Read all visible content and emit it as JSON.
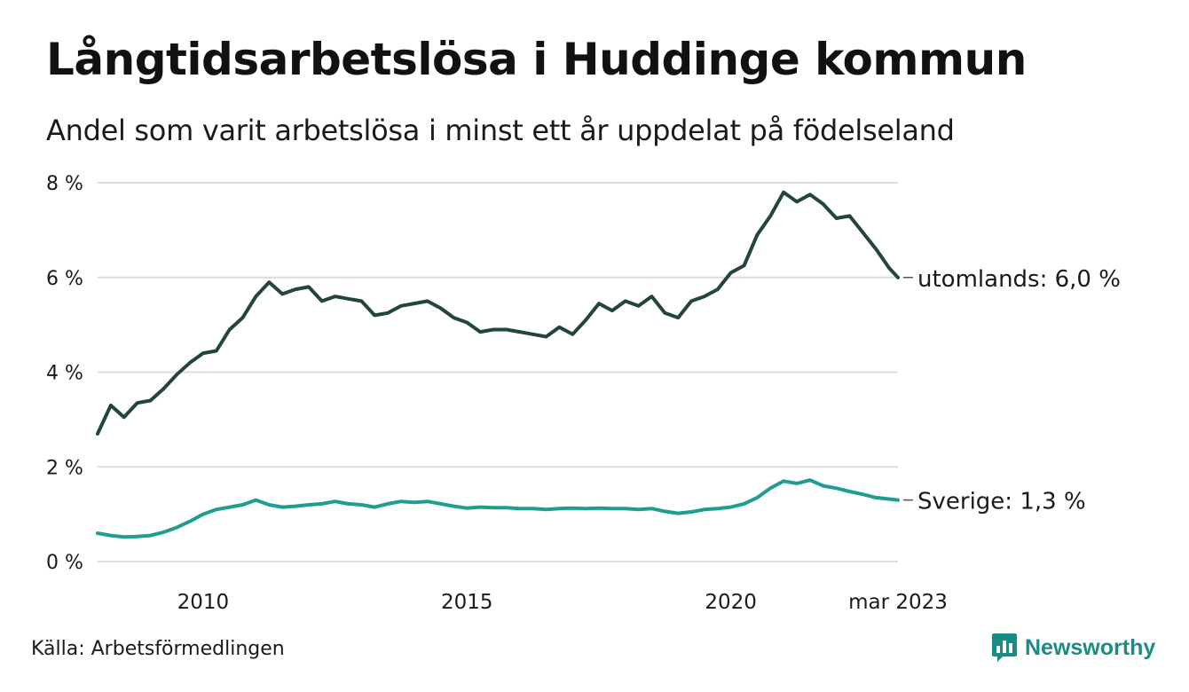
{
  "title": "Långtidsarbetslösa i Huddinge kommun",
  "subtitle": "Andel som varit arbetslösa i minst ett år uppdelat på födelseland",
  "source": "Källa: Arbetsförmedlingen",
  "brand": {
    "name": "Newsworthy",
    "color": "#1b8c84",
    "icon": "bar-chart-speech-bubble-icon"
  },
  "chart_data": {
    "type": "line",
    "x_range": [
      "2008-01",
      "2023-03"
    ],
    "ylim": [
      0,
      8
    ],
    "y_ticks": [
      {
        "value": 0,
        "label": "0 %"
      },
      {
        "value": 2,
        "label": "2 %"
      },
      {
        "value": 4,
        "label": "4 %"
      },
      {
        "value": 6,
        "label": "6 %"
      },
      {
        "value": 8,
        "label": "8 %"
      }
    ],
    "x_ticks": [
      {
        "date": "2010-01",
        "label": "2010"
      },
      {
        "date": "2015-01",
        "label": "2015"
      },
      {
        "date": "2020-01",
        "label": "2020"
      },
      {
        "date": "2023-03",
        "label": "mar 2023"
      }
    ],
    "grid": "horizontal",
    "legend": "direct labels at line ends",
    "series": [
      {
        "name": "utomlands",
        "end_label": "utomlands: 6,0 %",
        "color": "#22463f",
        "points": [
          [
            "2008-01",
            2.7
          ],
          [
            "2008-04",
            3.3
          ],
          [
            "2008-07",
            3.05
          ],
          [
            "2008-10",
            3.35
          ],
          [
            "2009-01",
            3.4
          ],
          [
            "2009-04",
            3.65
          ],
          [
            "2009-07",
            3.95
          ],
          [
            "2009-10",
            4.2
          ],
          [
            "2010-01",
            4.4
          ],
          [
            "2010-04",
            4.45
          ],
          [
            "2010-07",
            4.9
          ],
          [
            "2010-10",
            5.15
          ],
          [
            "2011-01",
            5.6
          ],
          [
            "2011-04",
            5.9
          ],
          [
            "2011-07",
            5.65
          ],
          [
            "2011-10",
            5.75
          ],
          [
            "2012-01",
            5.8
          ],
          [
            "2012-04",
            5.5
          ],
          [
            "2012-07",
            5.6
          ],
          [
            "2012-10",
            5.55
          ],
          [
            "2013-01",
            5.5
          ],
          [
            "2013-04",
            5.2
          ],
          [
            "2013-07",
            5.25
          ],
          [
            "2013-10",
            5.4
          ],
          [
            "2014-01",
            5.45
          ],
          [
            "2014-04",
            5.5
          ],
          [
            "2014-07",
            5.35
          ],
          [
            "2014-10",
            5.15
          ],
          [
            "2015-01",
            5.05
          ],
          [
            "2015-04",
            4.85
          ],
          [
            "2015-07",
            4.9
          ],
          [
            "2015-10",
            4.9
          ],
          [
            "2016-01",
            4.85
          ],
          [
            "2016-04",
            4.8
          ],
          [
            "2016-07",
            4.75
          ],
          [
            "2016-10",
            4.95
          ],
          [
            "2017-01",
            4.8
          ],
          [
            "2017-04",
            5.1
          ],
          [
            "2017-07",
            5.45
          ],
          [
            "2017-10",
            5.3
          ],
          [
            "2018-01",
            5.5
          ],
          [
            "2018-04",
            5.4
          ],
          [
            "2018-07",
            5.6
          ],
          [
            "2018-10",
            5.25
          ],
          [
            "2019-01",
            5.15
          ],
          [
            "2019-04",
            5.5
          ],
          [
            "2019-07",
            5.6
          ],
          [
            "2019-10",
            5.75
          ],
          [
            "2020-01",
            6.1
          ],
          [
            "2020-04",
            6.25
          ],
          [
            "2020-07",
            6.9
          ],
          [
            "2020-10",
            7.3
          ],
          [
            "2021-01",
            7.8
          ],
          [
            "2021-04",
            7.6
          ],
          [
            "2021-07",
            7.75
          ],
          [
            "2021-10",
            7.55
          ],
          [
            "2022-01",
            7.25
          ],
          [
            "2022-04",
            7.3
          ],
          [
            "2022-07",
            6.95
          ],
          [
            "2022-10",
            6.6
          ],
          [
            "2023-01",
            6.2
          ],
          [
            "2023-03",
            6.0
          ]
        ]
      },
      {
        "name": "Sverige",
        "end_label": "Sverige: 1,3 %",
        "color": "#1f9e8f",
        "points": [
          [
            "2008-01",
            0.6
          ],
          [
            "2008-04",
            0.55
          ],
          [
            "2008-07",
            0.52
          ],
          [
            "2008-10",
            0.53
          ],
          [
            "2009-01",
            0.55
          ],
          [
            "2009-04",
            0.62
          ],
          [
            "2009-07",
            0.72
          ],
          [
            "2009-10",
            0.85
          ],
          [
            "2010-01",
            1.0
          ],
          [
            "2010-04",
            1.1
          ],
          [
            "2010-07",
            1.15
          ],
          [
            "2010-10",
            1.2
          ],
          [
            "2011-01",
            1.3
          ],
          [
            "2011-04",
            1.2
          ],
          [
            "2011-07",
            1.15
          ],
          [
            "2011-10",
            1.17
          ],
          [
            "2012-01",
            1.2
          ],
          [
            "2012-04",
            1.22
          ],
          [
            "2012-07",
            1.27
          ],
          [
            "2012-10",
            1.22
          ],
          [
            "2013-01",
            1.2
          ],
          [
            "2013-04",
            1.15
          ],
          [
            "2013-07",
            1.22
          ],
          [
            "2013-10",
            1.27
          ],
          [
            "2014-01",
            1.25
          ],
          [
            "2014-04",
            1.27
          ],
          [
            "2014-07",
            1.22
          ],
          [
            "2014-10",
            1.17
          ],
          [
            "2015-01",
            1.13
          ],
          [
            "2015-04",
            1.15
          ],
          [
            "2015-07",
            1.14
          ],
          [
            "2015-10",
            1.14
          ],
          [
            "2016-01",
            1.12
          ],
          [
            "2016-04",
            1.12
          ],
          [
            "2016-07",
            1.1
          ],
          [
            "2016-10",
            1.12
          ],
          [
            "2017-01",
            1.13
          ],
          [
            "2017-04",
            1.12
          ],
          [
            "2017-07",
            1.13
          ],
          [
            "2017-10",
            1.12
          ],
          [
            "2018-01",
            1.12
          ],
          [
            "2018-04",
            1.1
          ],
          [
            "2018-07",
            1.12
          ],
          [
            "2018-10",
            1.06
          ],
          [
            "2019-01",
            1.02
          ],
          [
            "2019-04",
            1.05
          ],
          [
            "2019-07",
            1.1
          ],
          [
            "2019-10",
            1.12
          ],
          [
            "2020-01",
            1.15
          ],
          [
            "2020-04",
            1.22
          ],
          [
            "2020-07",
            1.35
          ],
          [
            "2020-10",
            1.55
          ],
          [
            "2021-01",
            1.7
          ],
          [
            "2021-04",
            1.65
          ],
          [
            "2021-07",
            1.72
          ],
          [
            "2021-10",
            1.6
          ],
          [
            "2022-01",
            1.55
          ],
          [
            "2022-04",
            1.48
          ],
          [
            "2022-07",
            1.42
          ],
          [
            "2022-10",
            1.35
          ],
          [
            "2023-01",
            1.32
          ],
          [
            "2023-03",
            1.3
          ]
        ]
      }
    ]
  }
}
